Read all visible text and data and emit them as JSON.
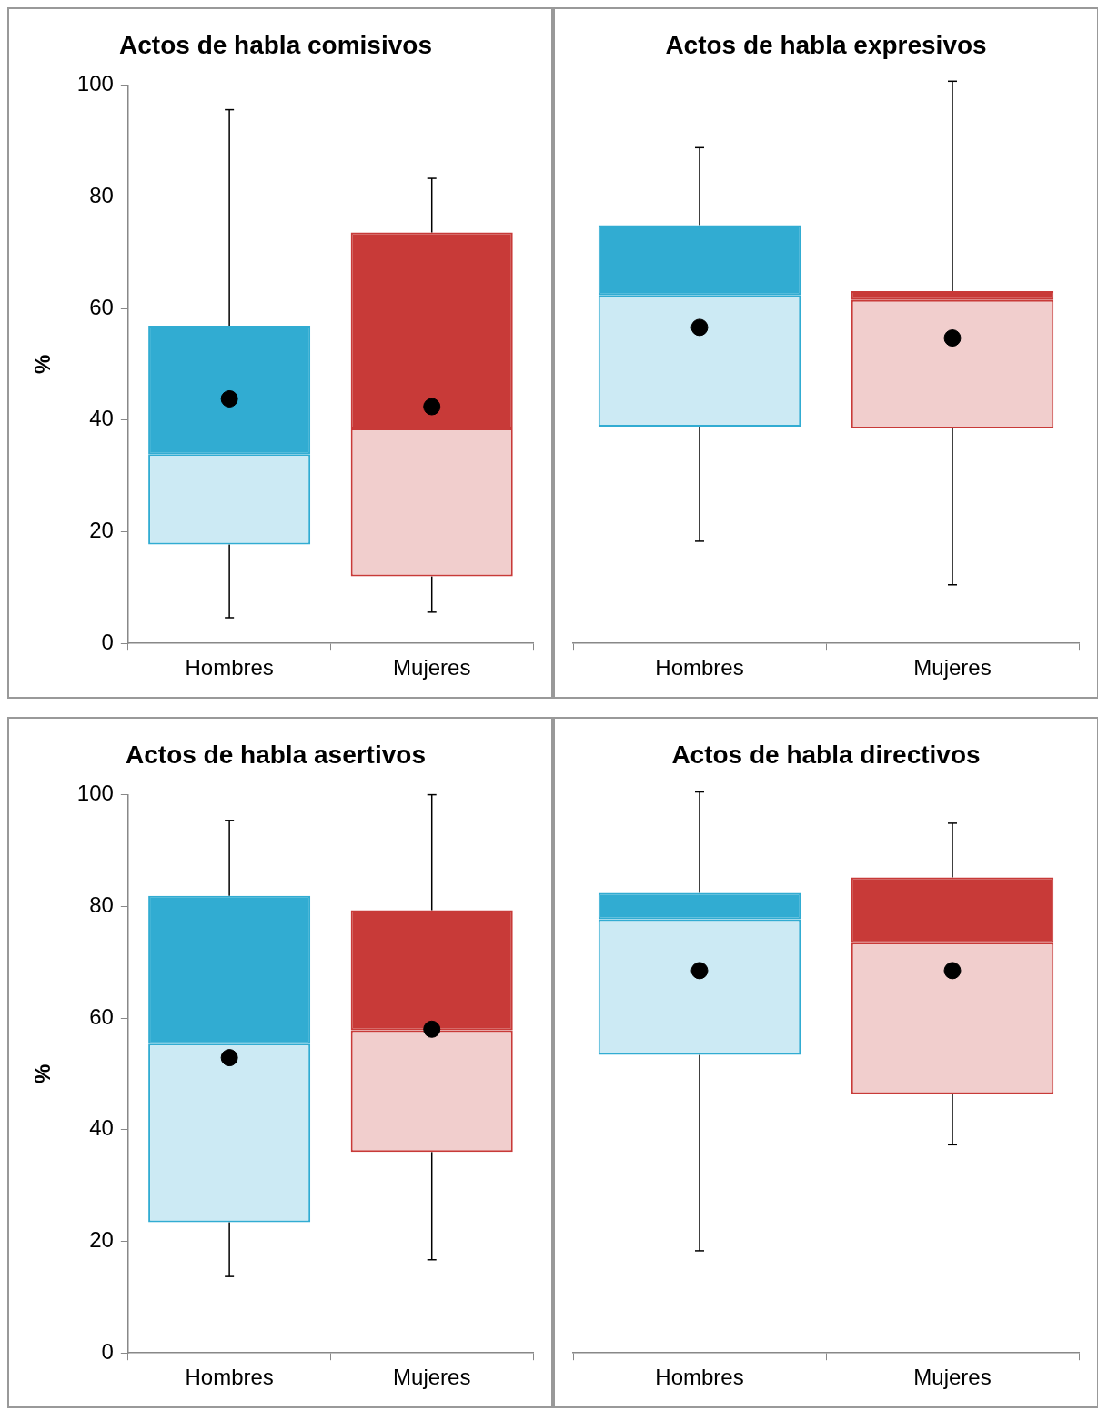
{
  "chart_data": [
    {
      "type": "box",
      "title": "Actos de habla comisivos",
      "ylabel": "%",
      "categories": [
        "Hombres",
        "Mujeres"
      ],
      "colors": [
        "#31acd2",
        "#c83a38"
      ],
      "ylim": [
        0,
        100
      ],
      "yticks": [
        0,
        20,
        40,
        60,
        80,
        100
      ],
      "grid": false,
      "marker": "circle",
      "boxes": [
        {
          "low": 4.6,
          "q1": 17.7,
          "median": 33.9,
          "q3": 56.9,
          "high": 95.6,
          "mean": 43.8
        },
        {
          "low": 5.6,
          "q1": 12,
          "median": 38.5,
          "q3": 73.6,
          "high": 83.3,
          "mean": 42.4
        }
      ]
    },
    {
      "type": "box",
      "title": "Actos de habla expresivos",
      "categories": [
        "Hombres",
        "Mujeres"
      ],
      "colors": [
        "#31acd2",
        "#c83a38"
      ],
      "ylim": [
        0,
        100
      ],
      "tick_labels": "x",
      "grid": false,
      "marker": "circle",
      "boxes": [
        {
          "low": 18.3,
          "q1": 38.8,
          "median": 62.4,
          "q3": 74.9,
          "high": 88.8,
          "mean": 56.6
        },
        {
          "low": 10.5,
          "q1": 38.5,
          "median": 61.5,
          "q3": 63.1,
          "high": 100.7,
          "mean": 54.7
        }
      ]
    },
    {
      "type": "box",
      "title": "Actos de habla asertivos",
      "ylabel": "%",
      "categories": [
        "Hombres",
        "Mujeres"
      ],
      "colors": [
        "#31acd2",
        "#c83a38"
      ],
      "ylim": [
        0,
        100
      ],
      "yticks": [
        0,
        20,
        40,
        60,
        80,
        100
      ],
      "grid": false,
      "marker": "circle",
      "boxes": [
        {
          "low": 13.7,
          "q1": 23.4,
          "median": 55.4,
          "q3": 81.9,
          "high": 95.4,
          "mean": 52.9
        },
        {
          "low": 16.7,
          "q1": 36,
          "median": 57.8,
          "q3": 79.3,
          "high": 100,
          "mean": 58
        }
      ]
    },
    {
      "type": "box",
      "title": "Actos de habla directivos",
      "categories": [
        "Hombres",
        "Mujeres"
      ],
      "colors": [
        "#31acd2",
        "#c83a38"
      ],
      "ylim": [
        0,
        100
      ],
      "tick_labels": "x",
      "grid": false,
      "marker": "circle",
      "boxes": [
        {
          "low": 18.3,
          "q1": 53.4,
          "median": 77.7,
          "q3": 82.4,
          "high": 100.5,
          "mean": 68.5
        },
        {
          "low": 37.3,
          "q1": 46.4,
          "median": 73.5,
          "q3": 85.2,
          "high": 94.9,
          "mean": 68.5
        }
      ]
    }
  ]
}
